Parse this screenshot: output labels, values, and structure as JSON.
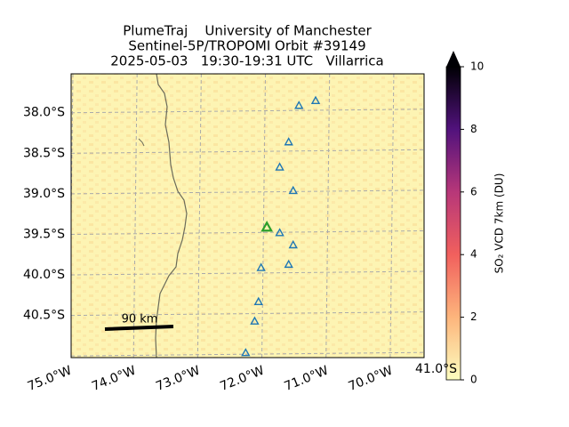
{
  "chart_data": {
    "type": "scatter",
    "title": [
      "PlumeTraj    University of Manchester",
      "Sentinel-5P/TROPOMI Orbit #39149",
      "2025-05-03   19:30-19:31 UTC   Villarrica"
    ],
    "xlim": [
      -75,
      -69.5
    ],
    "ylim": [
      -41.02,
      -37.52
    ],
    "xticks": [
      {
        "value": -75,
        "label": "75.0°W"
      },
      {
        "value": -74,
        "label": "74.0°W"
      },
      {
        "value": -73,
        "label": "73.0°W"
      },
      {
        "value": -72,
        "label": "72.0°W"
      },
      {
        "value": -71,
        "label": "71.0°W"
      },
      {
        "value": -70,
        "label": "70.0°W"
      }
    ],
    "yticks": [
      {
        "value": -38,
        "label": "38.0°S"
      },
      {
        "value": -38.5,
        "label": "38.5°S"
      },
      {
        "value": -39,
        "label": "39.0°S"
      },
      {
        "value": -39.5,
        "label": "39.5°S"
      },
      {
        "value": -40,
        "label": "40.0°S"
      },
      {
        "value": -40.5,
        "label": "40.5°S"
      },
      {
        "value": -41,
        "label": "41.0°S"
      }
    ],
    "grid": true,
    "series": [
      {
        "color": "#1f77b4",
        "x": [
          -71.45,
          -71.19,
          -71.61,
          -71.75,
          -71.54,
          -71.75,
          -71.54,
          -72.04,
          -71.61,
          -72.08,
          -72.14,
          -72.28
        ],
        "y": [
          -37.91,
          -37.85,
          -38.36,
          -38.67,
          -38.96,
          -39.48,
          -39.63,
          -39.91,
          -39.87,
          -40.33,
          -40.57,
          -40.96
        ]
      },
      {
        "color": "#2ca02c",
        "x": [
          -71.95
        ],
        "y": [
          -39.41
        ]
      }
    ],
    "scale_bar": "90 km",
    "colorbar": {
      "label": "SO₂ VCD 7km (DU)",
      "lim": [
        0,
        10
      ],
      "ticks": [
        0,
        2,
        4,
        6,
        8,
        10
      ]
    }
  }
}
